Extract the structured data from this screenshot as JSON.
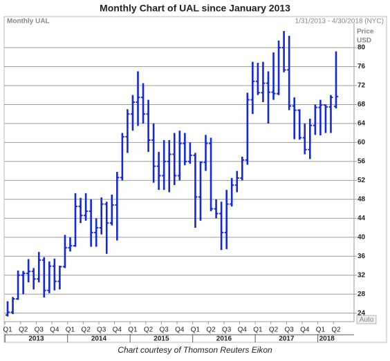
{
  "chart_data": {
    "type": "ohlc",
    "title": "Monthly Chart of UAL since January 2013",
    "subtitle_left": "Monthly UAL",
    "subtitle_right": "1/31/2013 - 4/30/2018 (NYC)",
    "axis_label": [
      "Price",
      "USD"
    ],
    "scale_mode": "Auto",
    "caption": "Chart courtesy of Thomson Reuters Eikon",
    "color": "#1428d8",
    "grid": true,
    "ylim": [
      22.2,
      85.1
    ],
    "yticks": [
      24,
      28,
      32,
      36,
      40,
      44,
      48,
      52,
      56,
      60,
      64,
      68,
      72,
      76,
      80
    ],
    "quarter_labels": [
      "Q1",
      "Q2",
      "Q3",
      "Q4",
      "Q1",
      "Q2",
      "Q3",
      "Q4",
      "Q1",
      "Q2",
      "Q3",
      "Q4",
      "Q1",
      "Q2",
      "Q3",
      "Q4",
      "Q1",
      "Q2",
      "Q3",
      "Q4",
      "Q1",
      "Q2"
    ],
    "year_labels": [
      "2013",
      "2014",
      "2015",
      "2016",
      "2017",
      "2018"
    ],
    "open": [
      23.6,
      24.2,
      27.0,
      32.0,
      32.4,
      32.8,
      31.2,
      35.2,
      28.8,
      33.9,
      30.7,
      33.8,
      37.8,
      38.2,
      46.5,
      44.6,
      45.5,
      41.0,
      42.0,
      47.0,
      43.0,
      46.8,
      52.6,
      61.2,
      66.0,
      68.5,
      69.5,
      66.0,
      60.5,
      55.0,
      53.0,
      56.0,
      57.5,
      53.0,
      59.8,
      56.0,
      57.3,
      48.5,
      55.8,
      59.8,
      46.0,
      45.0,
      41.0,
      47.0,
      51.0,
      52.5,
      56.3,
      69.0,
      72.9,
      70.5,
      72.5,
      70.6,
      70.3,
      80.0,
      75.3,
      67.7,
      66.8,
      61.0,
      58.5,
      63.6,
      67.4,
      67.9,
      67.5,
      67.6
    ],
    "high": [
      26.5,
      27.4,
      33.0,
      32.9,
      35.4,
      33.5,
      36.9,
      35.8,
      34.9,
      35.5,
      34.0,
      40.5,
      40.0,
      49.3,
      48.3,
      49.3,
      48.0,
      44.0,
      48.4,
      47.5,
      49.0,
      53.8,
      62.0,
      67.0,
      70.0,
      75.0,
      72.5,
      69.0,
      64.0,
      58.0,
      60.5,
      60.5,
      62.0,
      62.5,
      62.0,
      60.0,
      57.8,
      56.0,
      61.6,
      61.0,
      48.0,
      47.5,
      50.0,
      52.5,
      54.0,
      57.0,
      70.5,
      77.0,
      76.8,
      77.0,
      75.0,
      79.0,
      81.5,
      83.5,
      82.5,
      69.5,
      67.0,
      64.0,
      65.0,
      68.0,
      69.0,
      68.0,
      70.0,
      79.2
    ],
    "low": [
      23.3,
      23.8,
      26.8,
      28.0,
      30.5,
      29.0,
      30.5,
      27.3,
      28.2,
      28.8,
      29.0,
      33.5,
      37.0,
      38.0,
      43.0,
      43.5,
      38.0,
      38.0,
      40.6,
      36.5,
      42.5,
      39.3,
      52.0,
      57.8,
      62.5,
      63.5,
      64.0,
      58.0,
      51.5,
      50.0,
      50.0,
      49.5,
      51.0,
      52.0,
      55.2,
      55.5,
      42.0,
      43.5,
      54.0,
      45.5,
      44.0,
      37.3,
      37.5,
      46.5,
      49.5,
      52.0,
      55.3,
      66.0,
      70.0,
      68.5,
      64.0,
      69.0,
      70.0,
      74.8,
      66.8,
      60.7,
      60.6,
      57.5,
      56.5,
      61.6,
      61.5,
      62.0,
      62.0,
      67.2
    ],
    "close": [
      24.2,
      27.0,
      32.0,
      32.4,
      32.8,
      31.2,
      35.2,
      28.8,
      33.9,
      30.7,
      33.8,
      37.8,
      38.2,
      46.5,
      44.6,
      45.5,
      41.0,
      42.0,
      47.0,
      43.0,
      46.8,
      52.6,
      61.2,
      66.0,
      68.5,
      69.5,
      66.0,
      60.5,
      55.0,
      53.0,
      56.0,
      57.5,
      53.0,
      59.8,
      56.0,
      57.3,
      48.5,
      55.8,
      59.8,
      46.0,
      45.0,
      41.0,
      47.0,
      51.0,
      52.5,
      56.3,
      69.0,
      72.9,
      70.5,
      72.5,
      70.6,
      70.3,
      80.0,
      75.3,
      67.7,
      66.8,
      61.0,
      58.5,
      63.6,
      67.4,
      67.9,
      67.5,
      69.5,
      69.7
    ]
  }
}
